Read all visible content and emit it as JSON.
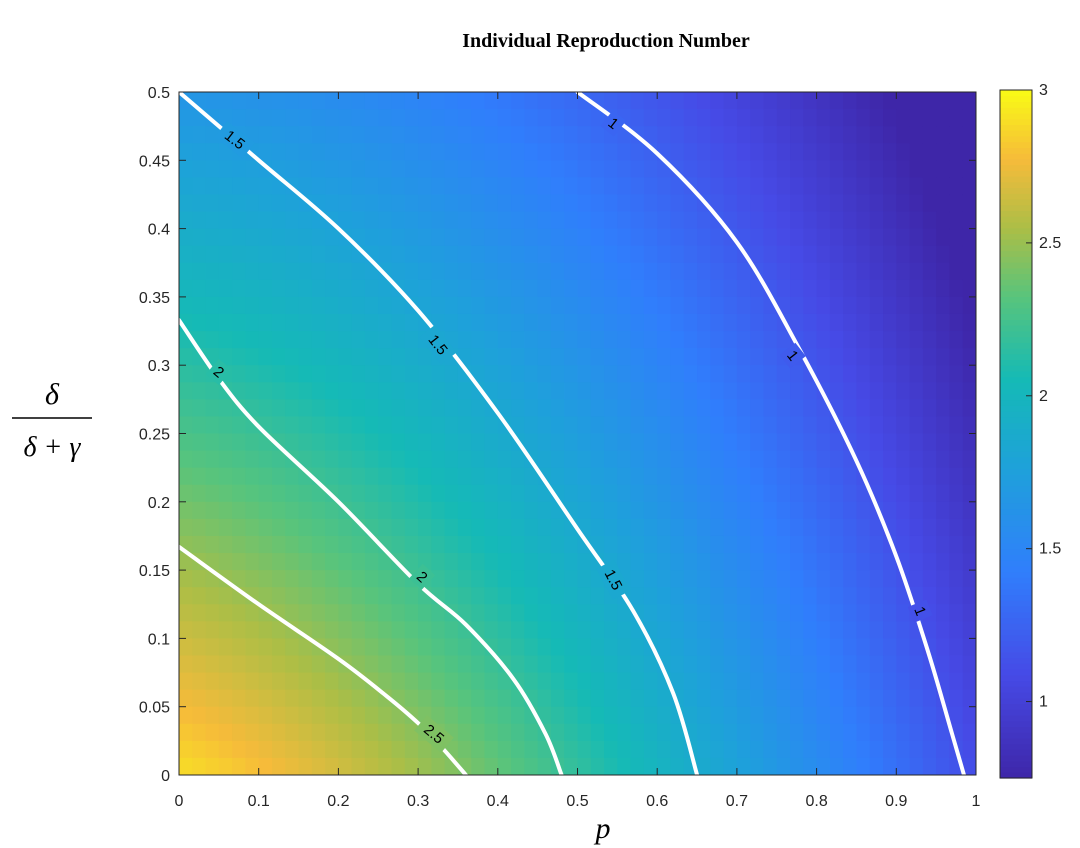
{
  "chart_data": {
    "type": "heatmap",
    "title": "Individual Reproduction Number",
    "xlabel": "p",
    "ylabel": {
      "numerator": "δ",
      "denominator": "δ + γ"
    },
    "xlim": [
      0,
      1
    ],
    "ylim": [
      0,
      0.5
    ],
    "x_ticks": [
      "0",
      "0.1",
      "0.2",
      "0.3",
      "0.4",
      "0.5",
      "0.6",
      "0.7",
      "0.8",
      "0.9",
      "1"
    ],
    "y_ticks": [
      "0",
      "0.05",
      "0.1",
      "0.15",
      "0.2",
      "0.25",
      "0.3",
      "0.35",
      "0.4",
      "0.45",
      "0.5"
    ],
    "colorbar": {
      "min": 0.75,
      "max": 3,
      "ticks": [
        "1",
        "1.5",
        "2",
        "2.5",
        "3"
      ],
      "colormap": "parula"
    },
    "grid": false,
    "contours": [
      {
        "level": "2.5",
        "points": [
          [
            0,
            0.167
          ],
          [
            0.1,
            0.125
          ],
          [
            0.2,
            0.085
          ],
          [
            0.26,
            0.058
          ],
          [
            0.3,
            0.038
          ],
          [
            0.33,
            0.02
          ],
          [
            0.36,
            0
          ]
        ]
      },
      {
        "level": "2",
        "points": [
          [
            0,
            0.333
          ],
          [
            0.05,
            0.29
          ],
          [
            0.1,
            0.255
          ],
          [
            0.2,
            0.2
          ],
          [
            0.3,
            0.14
          ],
          [
            0.36,
            0.11
          ],
          [
            0.42,
            0.07
          ],
          [
            0.46,
            0.03
          ],
          [
            0.48,
            0
          ]
        ]
      },
      {
        "level": "1.5",
        "points": [
          [
            0,
            0.5
          ],
          [
            0.1,
            0.45
          ],
          [
            0.2,
            0.4
          ],
          [
            0.3,
            0.34
          ],
          [
            0.4,
            0.265
          ],
          [
            0.5,
            0.18
          ],
          [
            0.57,
            0.12
          ],
          [
            0.62,
            0.06
          ],
          [
            0.65,
            0
          ]
        ]
      },
      {
        "level": "1",
        "points": [
          [
            0.5,
            0.5
          ],
          [
            0.6,
            0.455
          ],
          [
            0.7,
            0.39
          ],
          [
            0.78,
            0.31
          ],
          [
            0.85,
            0.23
          ],
          [
            0.9,
            0.16
          ],
          [
            0.94,
            0.09
          ],
          [
            0.97,
            0.03
          ],
          [
            0.985,
            0
          ]
        ]
      }
    ],
    "contour_labels": [
      {
        "text": "1.5",
        "x": 0.07,
        "y": 0.465,
        "angle": 38
      },
      {
        "text": "1.5",
        "x": 0.325,
        "y": 0.315,
        "angle": 52
      },
      {
        "text": "1.5",
        "x": 0.545,
        "y": 0.143,
        "angle": 62
      },
      {
        "text": "2",
        "x": 0.05,
        "y": 0.295,
        "angle": 40
      },
      {
        "text": "2",
        "x": 0.305,
        "y": 0.145,
        "angle": 43
      },
      {
        "text": "2.5",
        "x": 0.32,
        "y": 0.03,
        "angle": 40
      },
      {
        "text": "1",
        "x": 0.545,
        "y": 0.477,
        "angle": 38
      },
      {
        "text": "1",
        "x": 0.77,
        "y": 0.307,
        "angle": 52
      },
      {
        "text": "1",
        "x": 0.93,
        "y": 0.12,
        "angle": 68
      }
    ]
  }
}
